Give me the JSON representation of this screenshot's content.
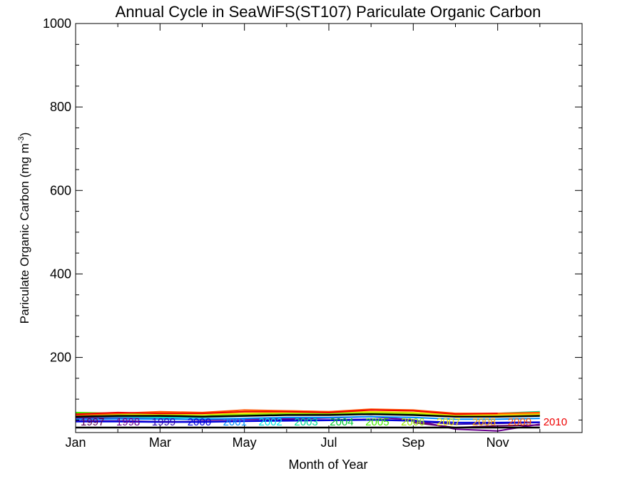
{
  "chart_data": {
    "type": "line",
    "title": "Annual Cycle in SeaWiFS(ST107) Pariculate Organic Carbon",
    "xlabel": "Month of Year",
    "ylabel_main": "Pariculate Organic Carbon (mg m",
    "ylabel_sup": "-3",
    "ylabel_close": ")",
    "xlim": [
      1,
      13
    ],
    "ylim": [
      20,
      1000
    ],
    "x_ticks": [
      1,
      3,
      5,
      7,
      9,
      11
    ],
    "x_tick_labels": [
      "Jan",
      "Mar",
      "May",
      "Jul",
      "Sep",
      "Nov"
    ],
    "y_ticks": [
      200,
      400,
      600,
      800,
      1000
    ],
    "y_tick_labels": [
      "200",
      "400",
      "600",
      "800",
      "1000"
    ],
    "x": [
      1,
      2,
      3,
      4,
      5,
      6,
      7,
      8,
      9,
      10,
      11,
      12
    ],
    "series": [
      {
        "name": "1997",
        "color": "#5a005a",
        "values": [
          null,
          null,
          null,
          null,
          null,
          null,
          null,
          null,
          44,
          32,
          36,
          38
        ]
      },
      {
        "name": "1998",
        "color": "#6a0090",
        "values": [
          55,
          56,
          54,
          50,
          52,
          53,
          55,
          58,
          50,
          28,
          24,
          40
        ]
      },
      {
        "name": "1999",
        "color": "#2a00b0",
        "values": [
          48,
          48,
          46,
          46,
          48,
          50,
          50,
          52,
          48,
          40,
          42,
          44
        ]
      },
      {
        "name": "2000",
        "color": "#0000dd",
        "values": [
          46,
          46,
          45,
          45,
          47,
          48,
          49,
          50,
          48,
          44,
          44,
          45
        ]
      },
      {
        "name": "2001",
        "color": "#0090ff",
        "values": [
          52,
          53,
          52,
          52,
          54,
          56,
          56,
          58,
          56,
          52,
          52,
          54
        ]
      },
      {
        "name": "2002",
        "color": "#00e5e5",
        "values": [
          58,
          58,
          56,
          56,
          60,
          62,
          62,
          64,
          62,
          58,
          60,
          62
        ]
      },
      {
        "name": "2003",
        "color": "#00dd99",
        "values": [
          60,
          60,
          58,
          60,
          62,
          64,
          64,
          66,
          64,
          62,
          66,
          70
        ]
      },
      {
        "name": "2004",
        "color": "#00cc33",
        "values": [
          66,
          64,
          60,
          60,
          64,
          66,
          66,
          68,
          66,
          64,
          64,
          66
        ]
      },
      {
        "name": "2005",
        "color": "#44ee00",
        "values": [
          68,
          66,
          62,
          60,
          62,
          64,
          64,
          66,
          64,
          60,
          60,
          62
        ]
      },
      {
        "name": "2006",
        "color": "#99ee00",
        "values": [
          62,
          62,
          60,
          60,
          62,
          64,
          64,
          66,
          64,
          60,
          62,
          64
        ]
      },
      {
        "name": "2007",
        "color": "#eeee00",
        "values": [
          60,
          62,
          64,
          64,
          66,
          68,
          68,
          70,
          68,
          62,
          62,
          64
        ]
      },
      {
        "name": "2008",
        "color": "#ffaa00",
        "values": [
          64,
          66,
          68,
          66,
          70,
          72,
          70,
          74,
          72,
          66,
          64,
          66
        ]
      },
      {
        "name": "2009",
        "color": "#ff5500",
        "values": [
          62,
          66,
          70,
          68,
          74,
          72,
          70,
          76,
          74,
          66,
          66,
          68
        ]
      },
      {
        "name": "2010",
        "color": "#ee0000",
        "values": [
          64,
          68,
          66,
          66,
          70,
          70,
          68,
          74,
          72,
          64,
          66,
          null
        ]
      },
      {
        "name": "",
        "color": "#000000",
        "values": [
          58,
          60,
          60,
          58,
          60,
          62,
          62,
          64,
          62,
          58,
          58,
          60
        ]
      },
      {
        "name": "",
        "color": "#000000",
        "values": [
          32,
          32,
          32,
          32,
          32,
          32,
          32,
          32,
          32,
          32,
          32,
          32
        ]
      }
    ]
  }
}
